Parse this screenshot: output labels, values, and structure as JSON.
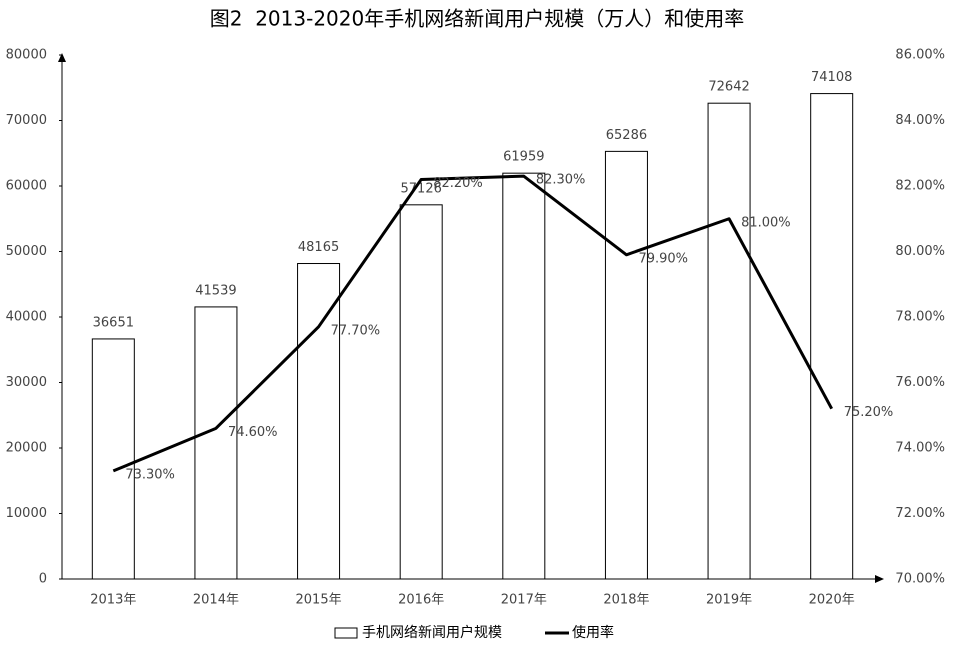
{
  "chart_data": {
    "type": "combo",
    "title": "图2  2013-2020年手机网络新闻用户规模（万人）和使用率",
    "categories": [
      "2013年",
      "2014年",
      "2015年",
      "2016年",
      "2017年",
      "2018年",
      "2019年",
      "2020年"
    ],
    "series": [
      {
        "name": "手机网络新闻用户规模",
        "type": "bar",
        "color": "#ffffff",
        "values": [
          36651,
          41539,
          48165,
          57126,
          61959,
          65286,
          72642,
          74108
        ]
      },
      {
        "name": "使用率",
        "type": "line",
        "axis": "y2",
        "color": "#000000",
        "values": [
          73.3,
          74.6,
          77.7,
          82.2,
          82.3,
          79.9,
          81.0,
          75.2
        ],
        "value_labels": [
          "73.30%",
          "74.60%",
          "77.70%",
          "82.20%",
          "82.30%",
          "79.90%",
          "81.00%",
          "75.20%"
        ]
      }
    ],
    "ylim": [
      0,
      80000
    ],
    "yticks": [
      0,
      10000,
      20000,
      30000,
      40000,
      50000,
      60000,
      70000,
      80000
    ],
    "y2lim": [
      70,
      86
    ],
    "y2ticks": [
      {
        "value": 70,
        "label": "70.00%"
      },
      {
        "value": 72,
        "label": "72.00%"
      },
      {
        "value": 74,
        "label": "74.00%"
      },
      {
        "value": 76,
        "label": "76.00%"
      },
      {
        "value": 78,
        "label": "78.00%"
      },
      {
        "value": 80,
        "label": "80.00%"
      },
      {
        "value": 82,
        "label": "82.00%"
      },
      {
        "value": 84,
        "label": "84.00%"
      },
      {
        "value": 86,
        "label": "86.00%"
      }
    ],
    "grid": false,
    "legend": "bottom"
  }
}
